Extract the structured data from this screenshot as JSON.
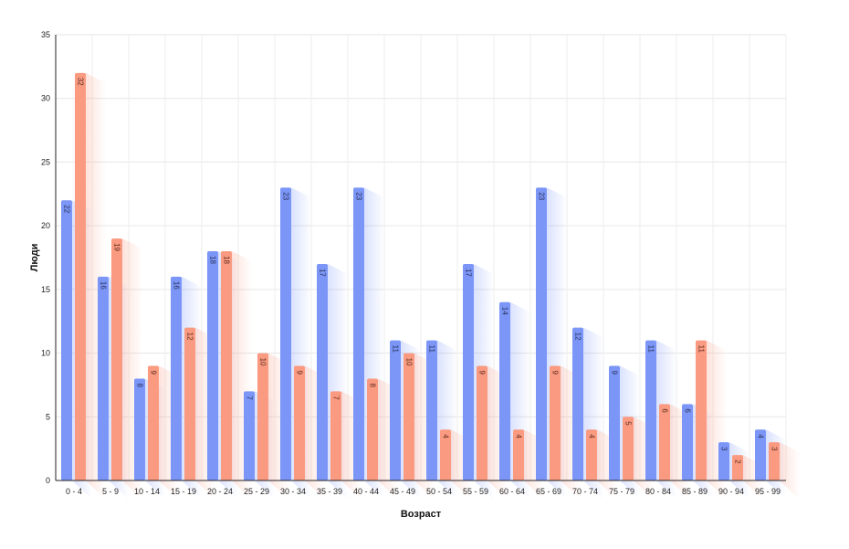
{
  "chart_data": {
    "type": "bar",
    "xlabel": "Возраст",
    "ylabel": "Люди",
    "ylim": [
      0,
      35
    ],
    "yticks": [
      0,
      5,
      10,
      15,
      20,
      25,
      30,
      35
    ],
    "grid": true,
    "legend": "none",
    "categories": [
      "0 - 4",
      "5 - 9",
      "10 - 14",
      "15 - 19",
      "20 - 24",
      "25 - 29",
      "30 - 34",
      "35 - 39",
      "40 - 44",
      "45 - 49",
      "50 - 54",
      "55 - 59",
      "60 - 64",
      "65 - 69",
      "70 - 74",
      "75 - 79",
      "80 - 84",
      "85 - 89",
      "90 - 94",
      "95 - 99"
    ],
    "series": [
      {
        "values": [
          22,
          16,
          8,
          16,
          18,
          7,
          23,
          17,
          23,
          11,
          11,
          17,
          14,
          23,
          12,
          9,
          11,
          6,
          3,
          4
        ],
        "color": "#7b96f7"
      },
      {
        "values": [
          32,
          19,
          9,
          12,
          18,
          10,
          9,
          7,
          8,
          10,
          4,
          9,
          4,
          9,
          4,
          5,
          6,
          11,
          2,
          3
        ],
        "color": "#fa9a80"
      }
    ]
  }
}
